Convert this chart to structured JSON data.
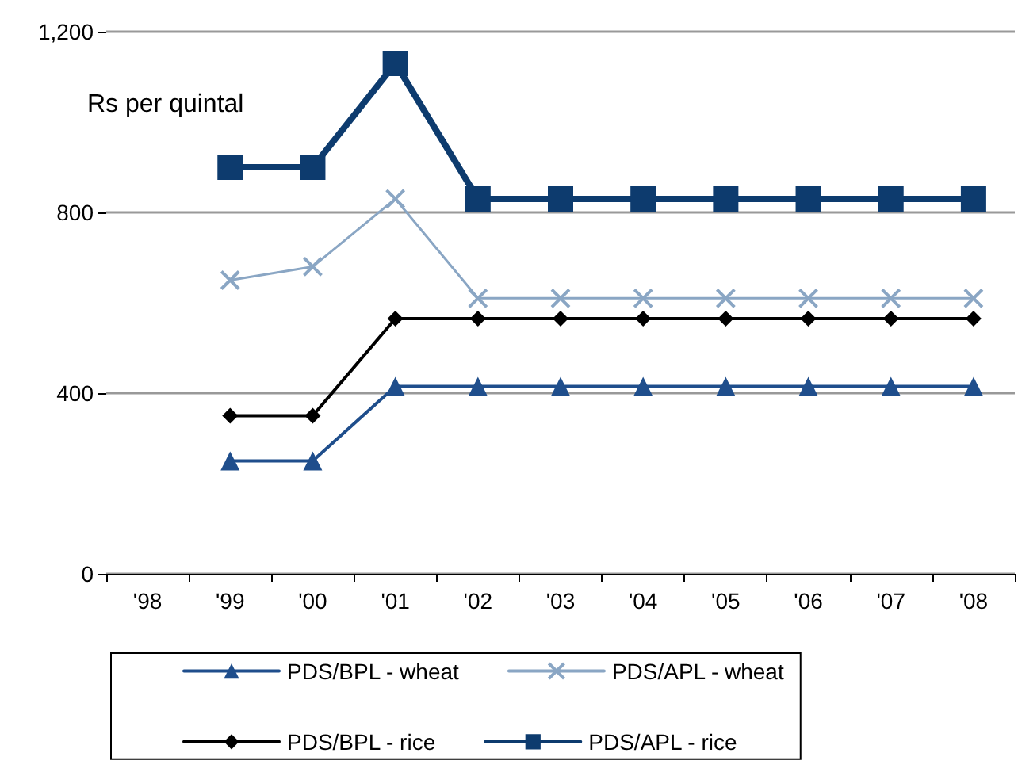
{
  "chart_data": {
    "type": "line",
    "ylabel": "Rs per quintal",
    "categories": [
      "'98",
      "'99",
      "'00",
      "'01",
      "'02",
      "'03",
      "'04",
      "'05",
      "'06",
      "'07",
      "'08"
    ],
    "series": [
      {
        "name": "PDS/BPL - wheat",
        "color": "#1f4e8c",
        "marker": "triangle",
        "values": [
          null,
          250,
          250,
          415,
          415,
          415,
          415,
          415,
          415,
          415,
          415
        ]
      },
      {
        "name": "PDS/APL - wheat",
        "color": "#8aa6c4",
        "marker": "cross",
        "values": [
          null,
          650,
          680,
          830,
          610,
          610,
          610,
          610,
          610,
          610,
          610
        ]
      },
      {
        "name": "PDS/BPL - rice",
        "color": "#000000",
        "marker": "diamond",
        "values": [
          null,
          350,
          350,
          565,
          565,
          565,
          565,
          565,
          565,
          565,
          565
        ]
      },
      {
        "name": "PDS/APL - rice",
        "color": "#0d3b6e",
        "marker": "square",
        "values": [
          null,
          900,
          900,
          1130,
          830,
          830,
          830,
          830,
          830,
          830,
          830
        ]
      }
    ],
    "ylim": [
      0,
      1200
    ],
    "yticks": [
      0,
      {
        "value": 400,
        "label": "400"
      },
      {
        "value": 800,
        "label": "800"
      },
      {
        "value": 1200,
        "label": "1,200"
      }
    ],
    "grid": "y",
    "legend": "bottom",
    "line_style": "solid"
  }
}
